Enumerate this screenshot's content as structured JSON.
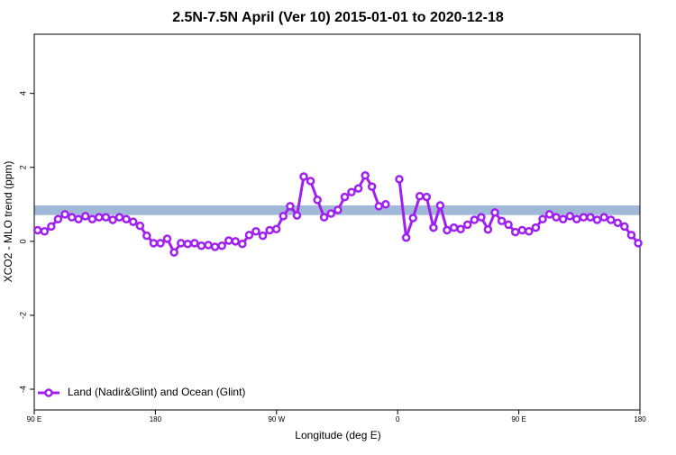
{
  "chart_data": {
    "type": "line",
    "title": "2.5N-7.5N April (Ver 10)   2015-01-01 to 2020-12-18",
    "x_label": "Longitude (deg E)",
    "y_label": "XCO2 - MLO trend (ppm)",
    "xlim": [
      90,
      540
    ],
    "ylim": [
      -4.56,
      5.6
    ],
    "xticks": [
      {
        "value": 90,
        "label": "90 E"
      },
      180,
      {
        "value": 270,
        "label": "90 W"
      },
      {
        "value": 360,
        "label": "0"
      },
      {
        "value": 450,
        "label": "90 E"
      },
      {
        "value": 540,
        "label": "180"
      }
    ],
    "yticks": [
      -4,
      -2,
      0,
      2,
      4
    ],
    "band": [
      0.71,
      0.97
    ],
    "band_color": "#a0b9d9",
    "legend": "bottom-left",
    "x": [
      92.5,
      97.6,
      102.6,
      107.7,
      112.8,
      117.9,
      122.9,
      128.0,
      133.1,
      138.1,
      143.2,
      148.3,
      153.3,
      158.4,
      163.5,
      168.6,
      173.6,
      178.7,
      183.8,
      188.8,
      193.9,
      199.0,
      204.0,
      209.1,
      214.2,
      219.3,
      224.3,
      229.4,
      234.5,
      239.5,
      244.6,
      249.7,
      254.7,
      259.8,
      264.9,
      269.9,
      275.0,
      280.1,
      285.2,
      290.2,
      295.3,
      300.4,
      305.4,
      310.5,
      315.6,
      320.7,
      325.7,
      330.8,
      335.9,
      340.9,
      346.0,
      351.1,
      356.1,
      361.2,
      366.3,
      371.4,
      376.4,
      381.5,
      386.6,
      391.6,
      396.7,
      401.8,
      406.8,
      411.9,
      417.0,
      422.1,
      427.1,
      432.2,
      437.3,
      442.3,
      447.4,
      452.5,
      457.5,
      462.6,
      467.7,
      472.8,
      477.8,
      482.9,
      488.0,
      493.0,
      498.1,
      503.2,
      508.2,
      513.3,
      518.4,
      523.5,
      528.5,
      533.6,
      538.7
    ],
    "series": [
      {
        "name": "Land (Nadir&Glint) and Ocean (Glint)",
        "color": "#a020f0",
        "values": [
          0.3,
          0.27,
          0.4,
          0.6,
          0.73,
          0.65,
          0.6,
          0.68,
          0.6,
          0.65,
          0.65,
          0.58,
          0.65,
          0.6,
          0.53,
          0.42,
          0.15,
          -0.05,
          -0.05,
          0.07,
          -0.3,
          -0.05,
          -0.07,
          -0.05,
          -0.12,
          -0.1,
          -0.15,
          -0.12,
          0.02,
          0,
          -0.07,
          0.17,
          0.27,
          0.15,
          0.3,
          0.33,
          0.68,
          0.95,
          0.7,
          1.75,
          1.63,
          1.12,
          0.65,
          0.75,
          0.85,
          1.2,
          1.33,
          1.43,
          1.78,
          1.48,
          0.95,
          1.0,
          null,
          1.68,
          0.1,
          0.63,
          1.22,
          1.2,
          0.37,
          0.97,
          0.3,
          0.37,
          0.33,
          0.45,
          0.58,
          0.65,
          0.32,
          0.78,
          0.55,
          0.45,
          0.25,
          0.3,
          0.27,
          0.37,
          0.6,
          0.73,
          0.65,
          0.6,
          0.68,
          0.6,
          0.65,
          0.65,
          0.58,
          0.65,
          0.58,
          0.5,
          0.4,
          0.17,
          -0.05
        ]
      }
    ]
  }
}
